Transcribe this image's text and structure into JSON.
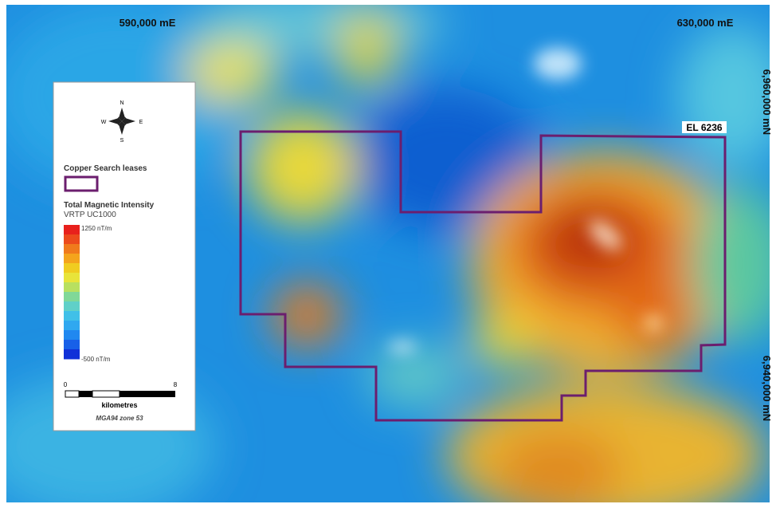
{
  "map": {
    "grid_labels": {
      "easting": [
        "590,000 mE",
        "630,000 mE"
      ],
      "northing": [
        "6,960,000 mN",
        "6,940,000 mN"
      ]
    },
    "lease_label": "EL 6236"
  },
  "legend": {
    "compass": {
      "n": "N",
      "s": "S",
      "e": "E",
      "w": "W"
    },
    "lease_title": "Copper Search leases",
    "intensity_title": "Total Magnetic Intensity",
    "intensity_subtitle": "VRTP UC1000",
    "max_label": "1250 nT/m",
    "min_label": "-500 nT/m",
    "scale": {
      "start": 0,
      "end": 8,
      "unit": "kilometres"
    },
    "projection": "MGA94 zone 53"
  }
}
